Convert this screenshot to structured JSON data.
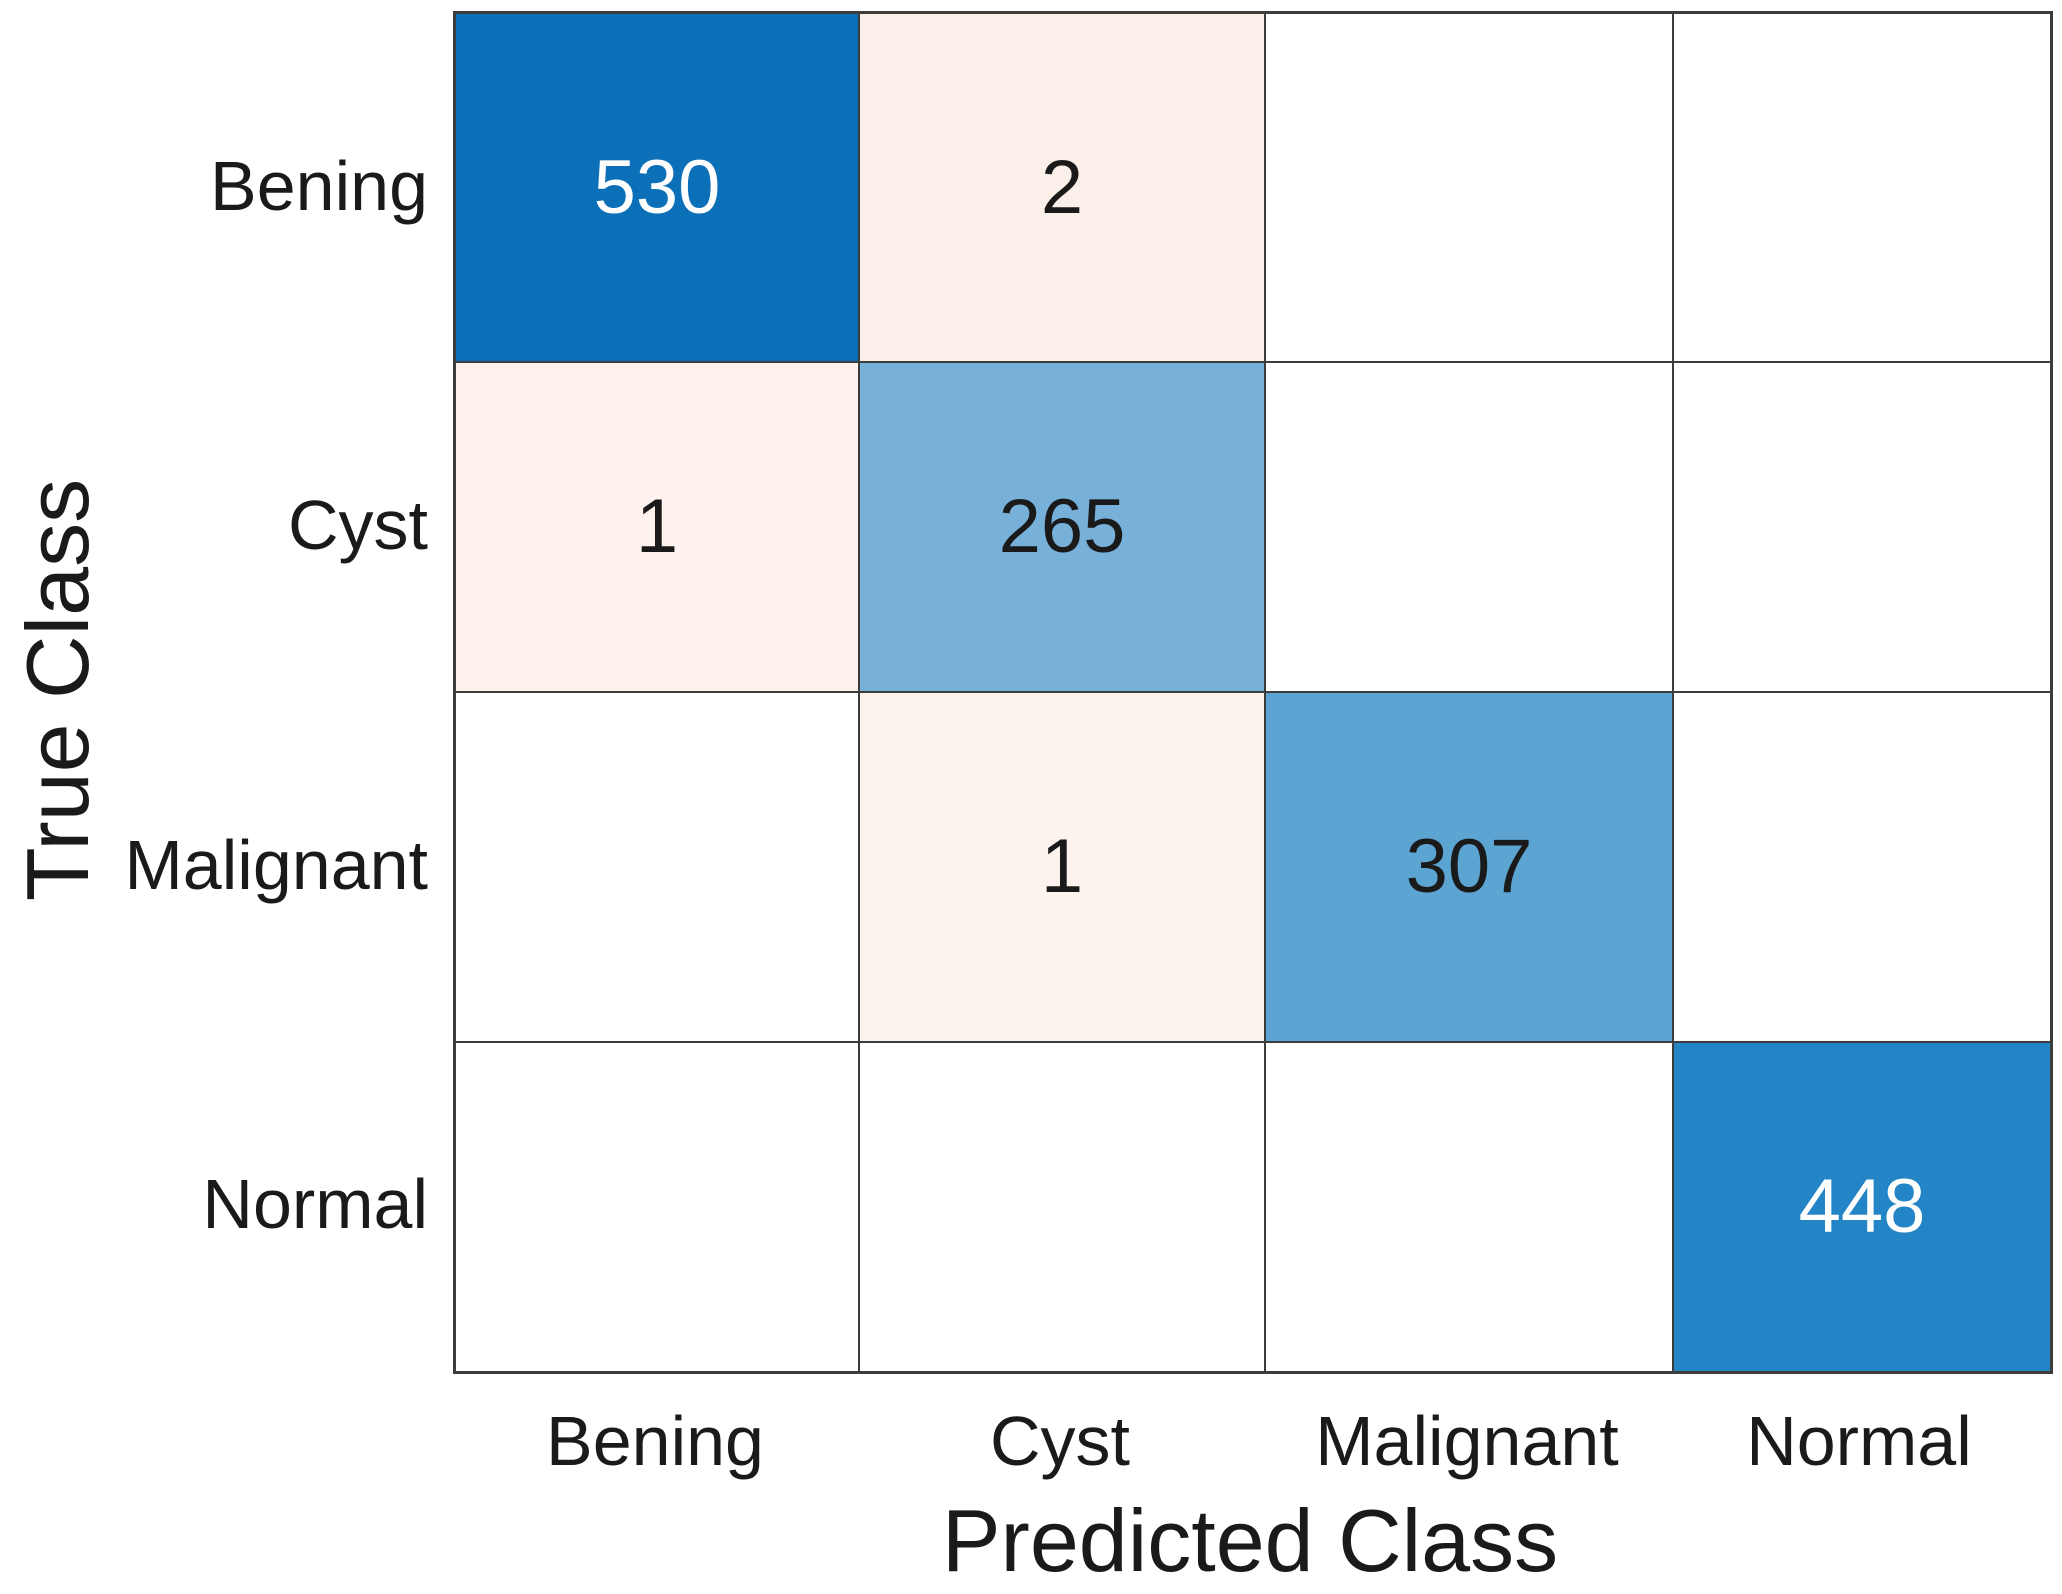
{
  "chart_data": {
    "type": "heatmap",
    "subtype": "confusion-matrix",
    "title": "",
    "xlabel": "Predicted Class",
    "ylabel": "True Class",
    "x_categories": [
      "Bening",
      "Cyst",
      "Malignant",
      "Normal"
    ],
    "y_categories": [
      "Bening",
      "Cyst",
      "Malignant",
      "Normal"
    ],
    "matrix": [
      [
        530,
        2,
        null,
        null
      ],
      [
        1,
        265,
        null,
        null
      ],
      [
        null,
        1,
        307,
        null
      ],
      [
        null,
        null,
        null,
        448
      ]
    ],
    "legend": "none",
    "grid_lines": "on"
  },
  "styles": {
    "background": "#ffffff",
    "grid_line_color": "#3c3c3c",
    "label_color": "#1a1a1a",
    "cell_colors": [
      [
        "#0c70b8",
        "#fbefe9",
        "#ffffff",
        "#ffffff"
      ],
      [
        "#fdf2ed",
        "#77b0d9",
        "#ffffff",
        "#ffffff"
      ],
      [
        "#ffffff",
        "#fdf3ee",
        "#5ca4d2",
        "#ffffff"
      ],
      [
        "#ffffff",
        "#ffffff",
        "#ffffff",
        "#2385c6"
      ]
    ],
    "cell_text_colors": [
      [
        "#ffffff",
        "#1a1a1a",
        "#1a1a1a",
        "#1a1a1a"
      ],
      [
        "#1a1a1a",
        "#1a1a1a",
        "#1a1a1a",
        "#1a1a1a"
      ],
      [
        "#1a1a1a",
        "#1a1a1a",
        "#1a1a1a",
        "#1a1a1a"
      ],
      [
        "#1a1a1a",
        "#1a1a1a",
        "#1a1a1a",
        "#ffffff"
      ]
    ]
  }
}
